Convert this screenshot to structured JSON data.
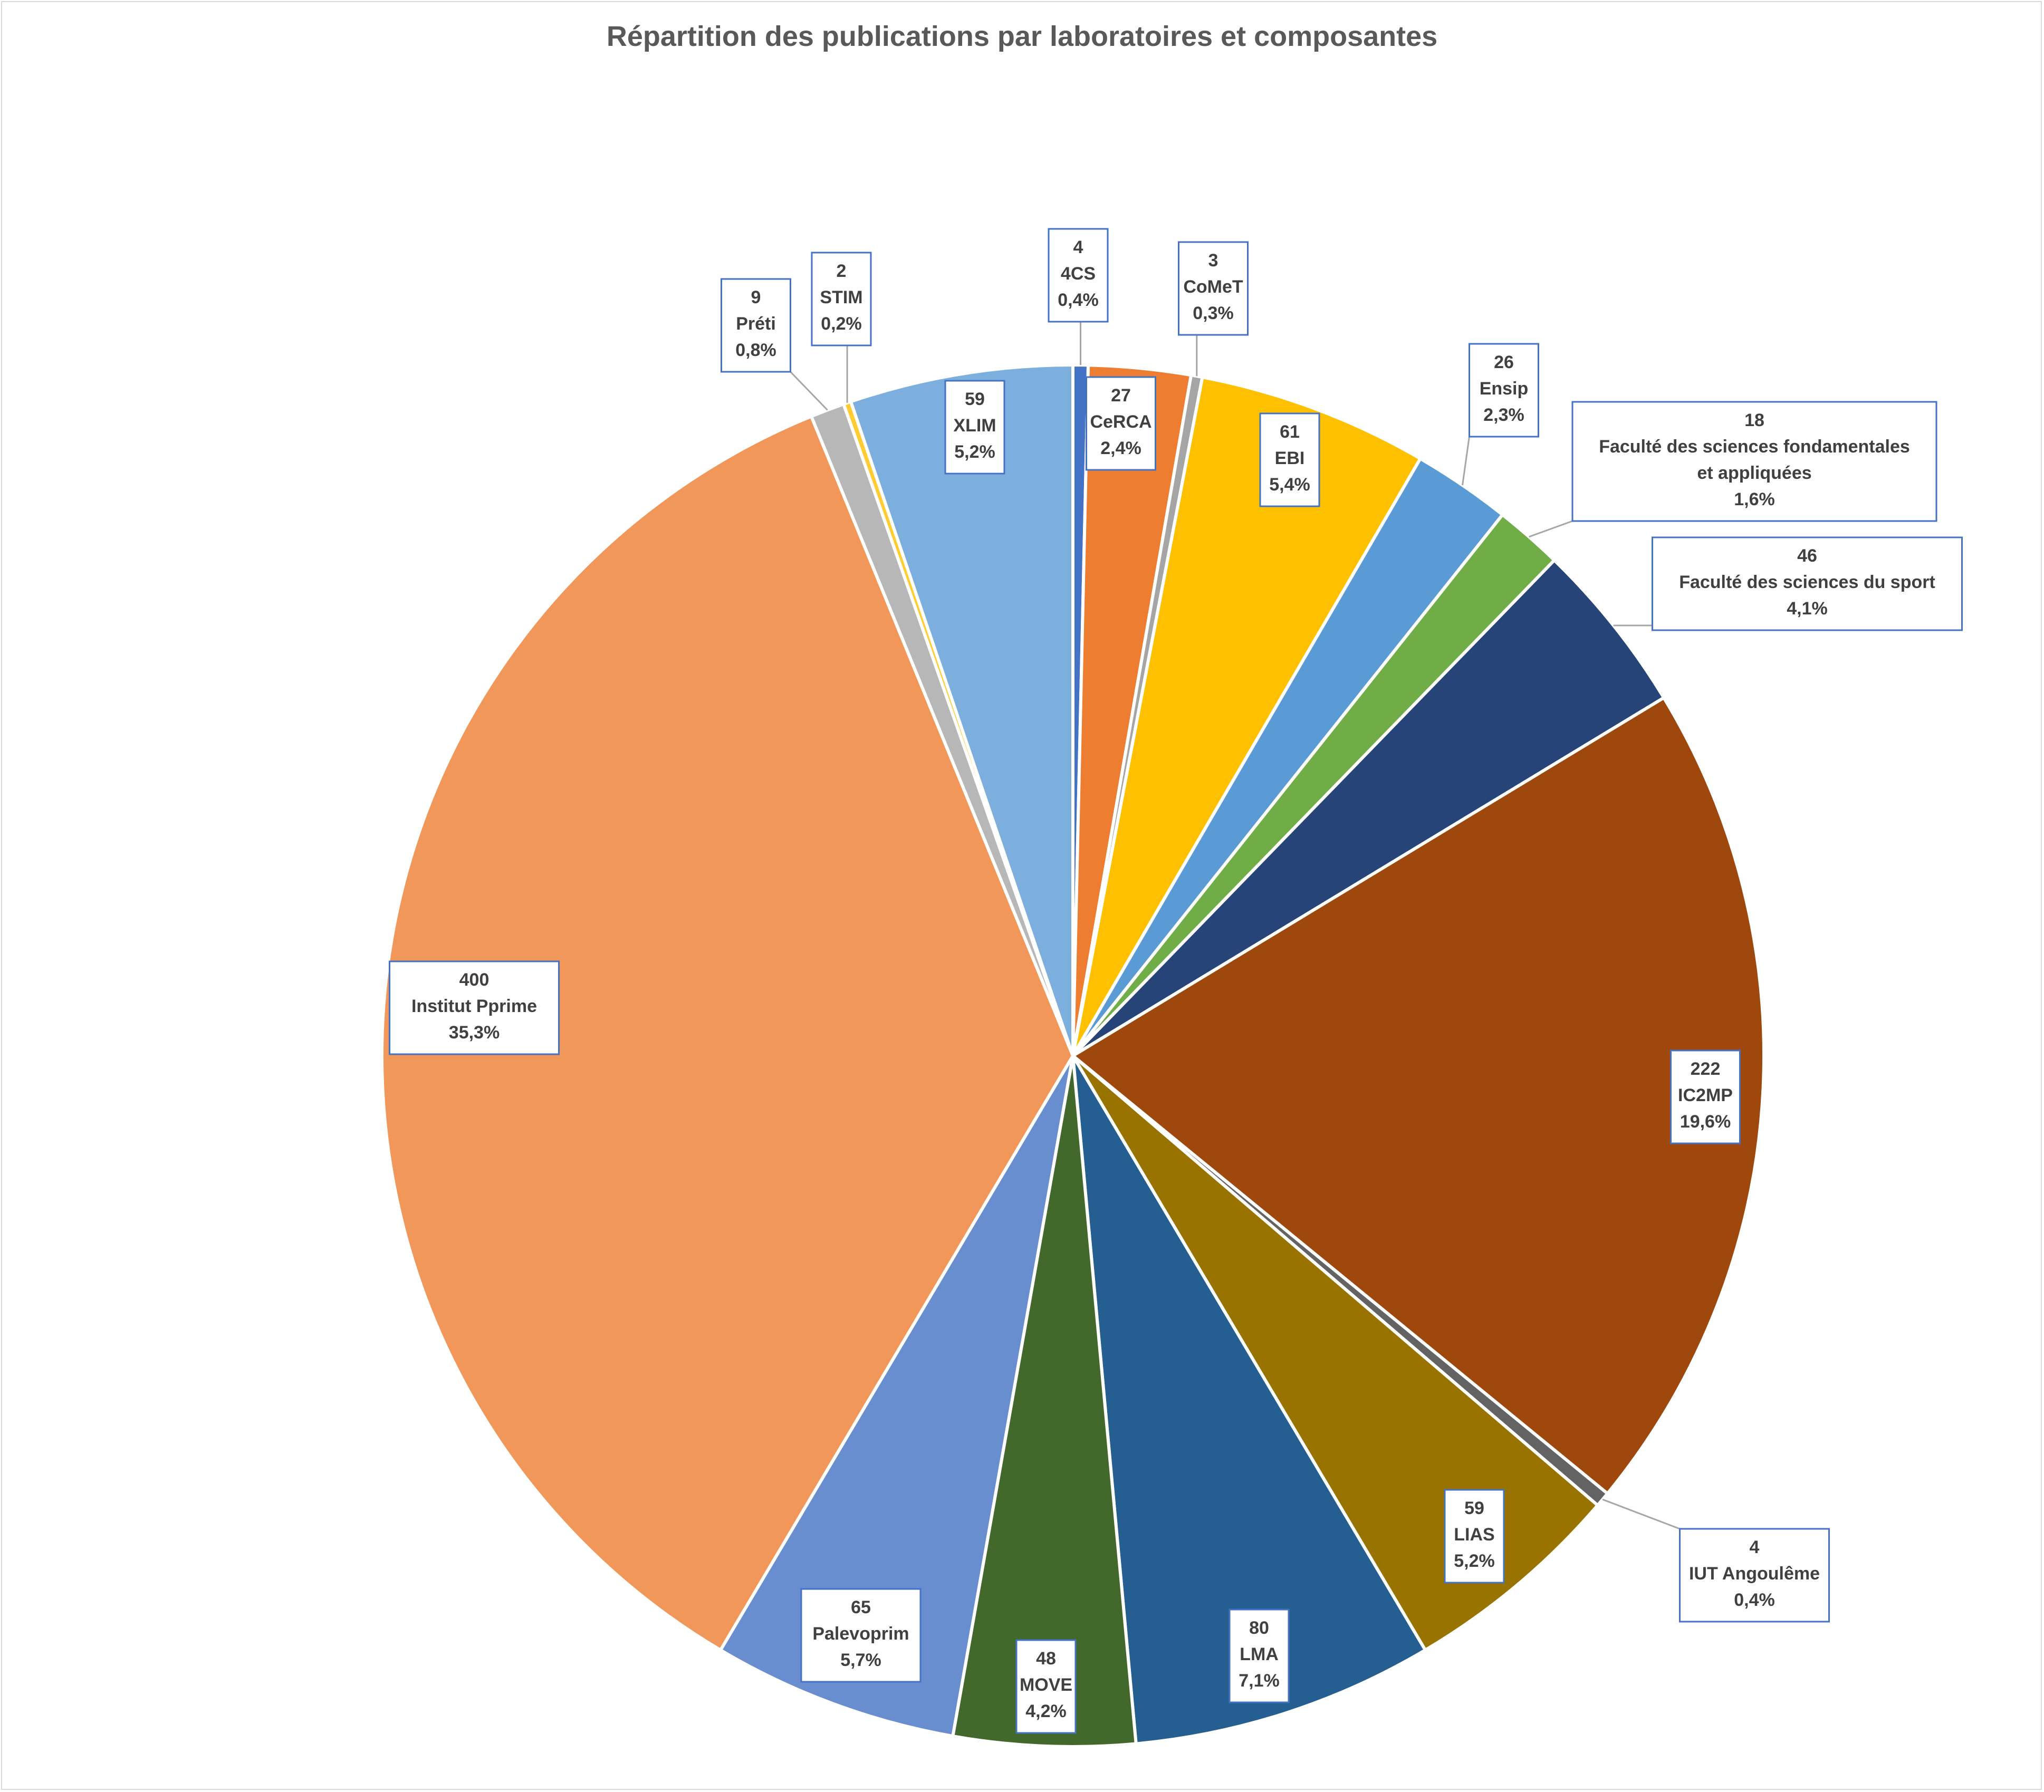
{
  "chart_data": {
    "type": "pie",
    "title": "Répartition des publications par laboratoires et composantes",
    "slices": [
      {
        "name": "4CS",
        "value": 4,
        "percent": "0,4%",
        "color": "#4472c4"
      },
      {
        "name": "CeRCA",
        "value": 27,
        "percent": "2,4%",
        "color": "#ed7d31"
      },
      {
        "name": "CoMeT",
        "value": 3,
        "percent": "0,3%",
        "color": "#a5a5a5"
      },
      {
        "name": "EBI",
        "value": 61,
        "percent": "5,4%",
        "color": "#ffc000"
      },
      {
        "name": "Ensip",
        "value": 26,
        "percent": "2,3%",
        "color": "#5b9bd5"
      },
      {
        "name": "Faculté des sciences fondamentales et appliquées",
        "value": 18,
        "percent": "1,6%",
        "color": "#70ad47"
      },
      {
        "name": "Faculté des sciences du sport",
        "value": 46,
        "percent": "4,1%",
        "color": "#264478"
      },
      {
        "name": "IC2MP",
        "value": 222,
        "percent": "19,6%",
        "color": "#9e480e"
      },
      {
        "name": "IUT Angoulême",
        "value": 4,
        "percent": "0,4%",
        "color": "#636363"
      },
      {
        "name": "LIAS",
        "value": 59,
        "percent": "5,2%",
        "color": "#997300"
      },
      {
        "name": "LMA",
        "value": 80,
        "percent": "7,1%",
        "color": "#255e91"
      },
      {
        "name": "MOVE",
        "value": 48,
        "percent": "4,2%",
        "color": "#43682b"
      },
      {
        "name": "Palevoprim",
        "value": 65,
        "percent": "5,7%",
        "color": "#698ed0"
      },
      {
        "name": "Institut Pprime",
        "value": 400,
        "percent": "35,3%",
        "color": "#f1975a"
      },
      {
        "name": "Préti",
        "value": 9,
        "percent": "0,8%",
        "color": "#b7b7b7"
      },
      {
        "name": "STIM",
        "value": 2,
        "percent": "0,2%",
        "color": "#ffcd33"
      },
      {
        "name": "XLIM",
        "value": 59,
        "percent": "5,2%",
        "color": "#7cafdd"
      }
    ],
    "legend": "none",
    "data_labels": "value, category, percent"
  }
}
